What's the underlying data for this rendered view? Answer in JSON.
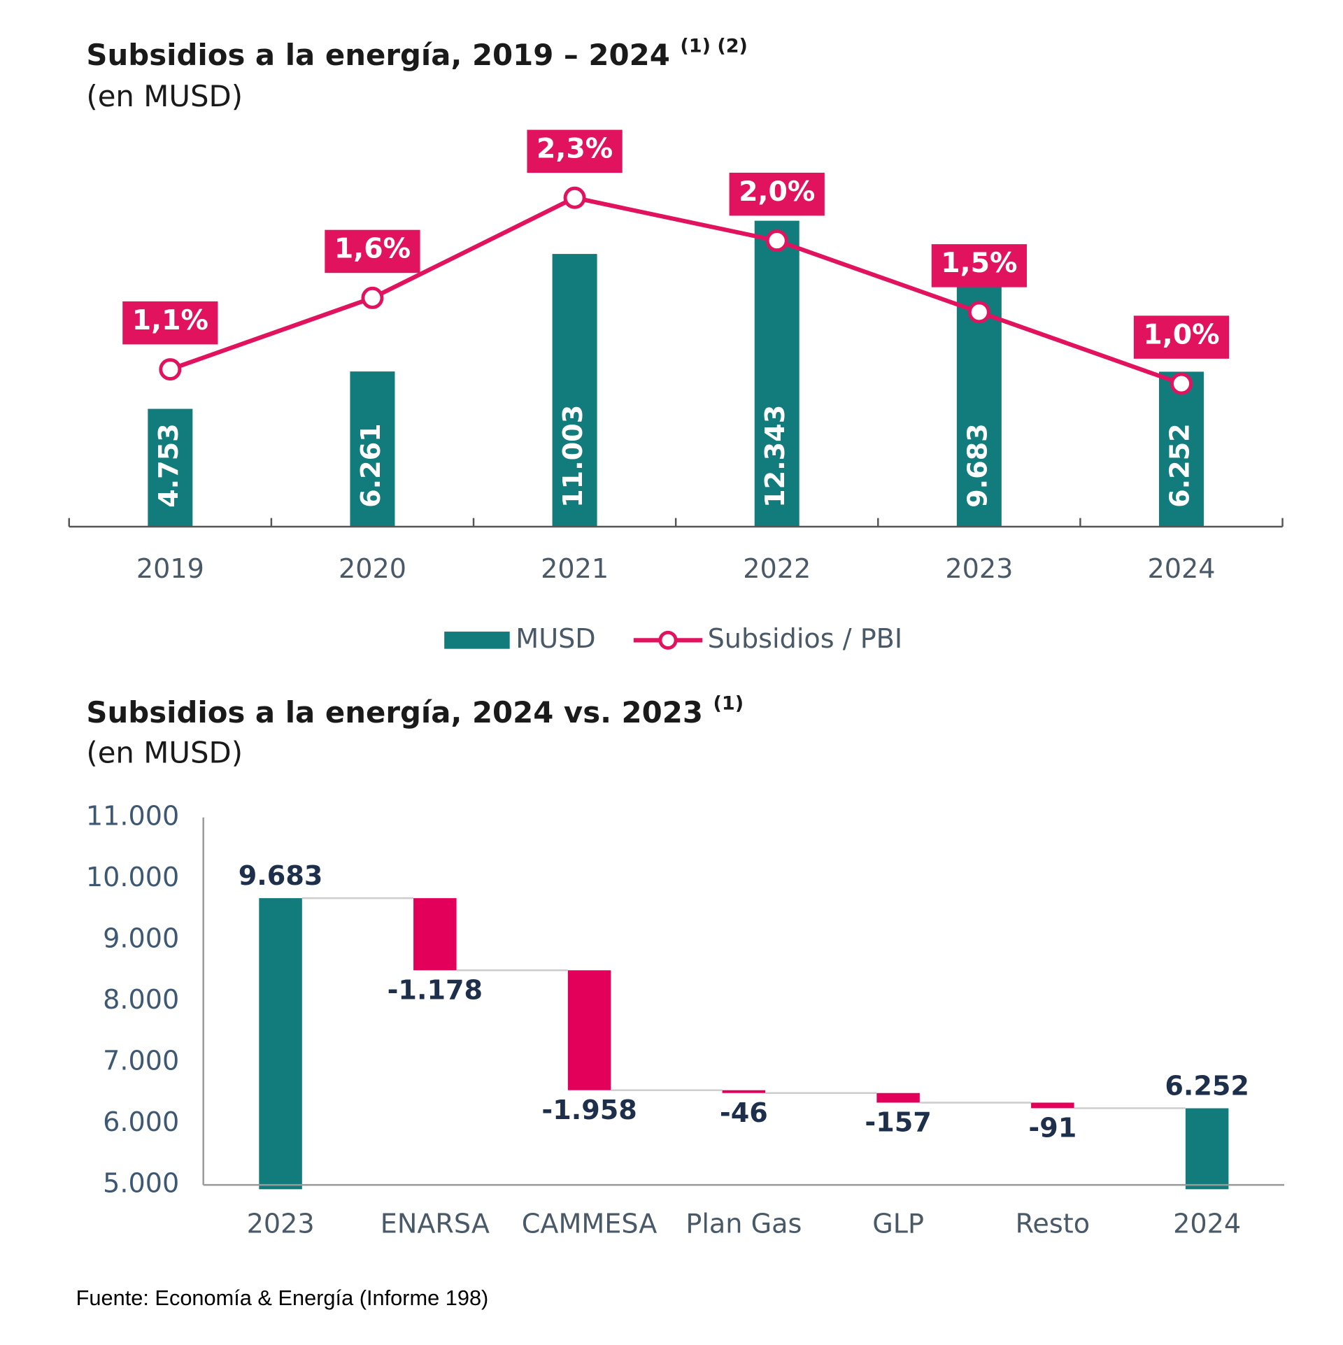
{
  "chart_data": [
    {
      "type": "bar_line",
      "title": "Subsidios a la energía, 2019 – 2024",
      "title_note": "(1) (2)",
      "subtitle": "(en MUSD)",
      "categories": [
        "2019",
        "2020",
        "2021",
        "2022",
        "2023",
        "2024"
      ],
      "ylim": [
        0,
        15000
      ],
      "y2lim": [
        0,
        2.6
      ],
      "series": [
        {
          "name": "MUSD",
          "color": "#127b7b",
          "values": [
            4753,
            6261,
            11003,
            12343,
            9683,
            6252
          ],
          "value_labels": [
            "4.753",
            "6.261",
            "11.003",
            "12.343",
            "9.683",
            "6.252"
          ]
        },
        {
          "name": "Subsidios / PBI",
          "color": "#e2135e",
          "axis": "y2",
          "values": [
            1.1,
            1.6,
            2.3,
            2.0,
            1.5,
            1.0
          ],
          "value_labels": [
            "1,1%",
            "1,6%",
            "2,3%",
            "2,0%",
            "1,5%",
            "1,0%"
          ]
        }
      ]
    },
    {
      "type": "waterfall",
      "title": "Subsidios a la energía, 2024 vs. 2023",
      "title_note": "(1)",
      "subtitle": "(en MUSD)",
      "categories": [
        "2023",
        "ENARSA",
        "CAMMESA",
        "Plan Gas",
        "GLP",
        "Resto",
        "2024"
      ],
      "measure": [
        "absolute",
        "relative",
        "relative",
        "relative",
        "relative",
        "relative",
        "absolute"
      ],
      "values": [
        9683,
        -1178,
        -1958,
        -46,
        -157,
        -91,
        6252
      ],
      "value_labels": [
        "9.683",
        "-1.178",
        "-1.958",
        "-46",
        "-157",
        "-91",
        "6.252"
      ],
      "total_color": "#127b7b",
      "decrease_color": "#e2005a",
      "ylim": [
        5000,
        11000
      ],
      "yticks": [
        {
          "value": 5000,
          "label": "5.000"
        },
        {
          "value": 6000,
          "label": "6.000"
        },
        {
          "value": 7000,
          "label": "7.000"
        },
        {
          "value": 8000,
          "label": "8.000"
        },
        {
          "value": 9000,
          "label": "9.000"
        },
        {
          "value": 10000,
          "label": "10.000"
        },
        {
          "value": 11000,
          "label": "11.000"
        }
      ]
    }
  ],
  "source": "Fuente: Economía & Energía (Informe 198)"
}
